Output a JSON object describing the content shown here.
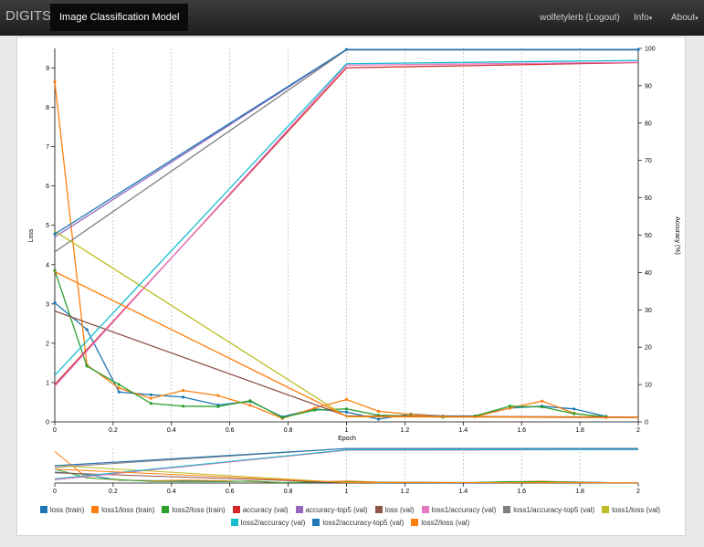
{
  "nav": {
    "brand": "DIGITS",
    "crumb": "Image Classification Model",
    "user": "wolfetylerb (Logout)",
    "info": "Info",
    "about": "About",
    "caret": "▾"
  },
  "chart_data": {
    "type": "line",
    "xlabel": "Epoch",
    "ylabel": "Loss",
    "y2label": "Accuracy (%)",
    "xlim": [
      0,
      2
    ],
    "ylim": [
      0,
      9.5
    ],
    "y2lim": [
      0,
      100
    ],
    "xticks": [
      "0",
      "0.2",
      "0.4",
      "0.6",
      "0.8",
      "1",
      "1.2",
      "1.4",
      "1.6",
      "1.8",
      "2"
    ],
    "yticks": [
      "0",
      "1",
      "2",
      "3",
      "4",
      "5",
      "6",
      "7",
      "8",
      "9"
    ],
    "y2ticks": [
      "0",
      "10",
      "20",
      "30",
      "40",
      "50",
      "60",
      "70",
      "80",
      "90",
      "100"
    ],
    "grid_x": true,
    "series": [
      {
        "name": "loss (train)",
        "axis": "left",
        "color": "#1f77b4",
        "markers": true,
        "x": [
          0,
          0.11,
          0.22,
          0.33,
          0.44,
          0.56,
          0.67,
          0.78,
          0.89,
          1.0,
          1.11,
          1.22,
          1.33,
          1.44,
          1.56,
          1.67,
          1.78,
          1.89
        ],
        "y": [
          3.03,
          2.35,
          0.76,
          0.69,
          0.63,
          0.43,
          0.52,
          0.13,
          0.33,
          0.25,
          0.07,
          0.2,
          0.15,
          0.15,
          0.35,
          0.4,
          0.33,
          0.14
        ]
      },
      {
        "name": "loss1/loss (train)",
        "axis": "left",
        "color": "#ff7f0e",
        "markers": true,
        "x": [
          0,
          0.11,
          0.22,
          0.33,
          0.44,
          0.56,
          0.67,
          0.78,
          0.89,
          1.0,
          1.11,
          1.22,
          1.33,
          1.44,
          1.56,
          1.67,
          1.78,
          1.89
        ],
        "y": [
          8.65,
          1.45,
          0.86,
          0.6,
          0.8,
          0.67,
          0.42,
          0.09,
          0.35,
          0.57,
          0.27,
          0.19,
          0.14,
          0.13,
          0.35,
          0.53,
          0.22,
          0.11
        ]
      },
      {
        "name": "loss2/loss (train)",
        "axis": "left",
        "color": "#2ca02c",
        "markers": true,
        "x": [
          0,
          0.11,
          0.22,
          0.33,
          0.44,
          0.56,
          0.67,
          0.78,
          0.89,
          1.0,
          1.11,
          1.22,
          1.33,
          1.44,
          1.56,
          1.67,
          1.78,
          1.89
        ],
        "y": [
          3.85,
          1.42,
          0.95,
          0.47,
          0.4,
          0.39,
          0.54,
          0.11,
          0.3,
          0.33,
          0.17,
          0.15,
          0.12,
          0.15,
          0.4,
          0.38,
          0.21,
          0.13
        ]
      },
      {
        "name": "accuracy (val)",
        "axis": "right",
        "color": "#d62728",
        "markers": false,
        "x": [
          0,
          1,
          2
        ],
        "y": [
          10,
          94.8,
          96.2
        ]
      },
      {
        "name": "accuracy-top5 (val)",
        "axis": "right",
        "color": "#9467bd",
        "markers": false,
        "x": [
          0,
          1,
          2
        ],
        "y": [
          49.5,
          99.6,
          99.6
        ]
      },
      {
        "name": "loss (val)",
        "axis": "left",
        "color": "#8c564b",
        "markers": false,
        "x": [
          0,
          1,
          2
        ],
        "y": [
          2.82,
          0.15,
          0.12
        ]
      },
      {
        "name": "loss1/accuracy (val)",
        "axis": "right",
        "color": "#e377c2",
        "markers": false,
        "x": [
          0,
          1,
          2
        ],
        "y": [
          9.5,
          95.5,
          96.3
        ]
      },
      {
        "name": "loss1/accuracy-top5 (val)",
        "axis": "right",
        "color": "#7f7f7f",
        "markers": false,
        "x": [
          0,
          1,
          2
        ],
        "y": [
          45.5,
          99.6,
          99.6
        ]
      },
      {
        "name": "loss1/loss (val)",
        "axis": "left",
        "color": "#bcbd22",
        "markers": false,
        "x": [
          0,
          1,
          2
        ],
        "y": [
          4.85,
          0.13,
          0.11
        ]
      },
      {
        "name": "loss2/accuracy (val)",
        "axis": "right",
        "color": "#17becf",
        "markers": false,
        "x": [
          0,
          1,
          2
        ],
        "y": [
          12.5,
          95.9,
          96.8
        ]
      },
      {
        "name": "loss2/accuracy-top5 (val)",
        "axis": "right",
        "color": "#1f77b4",
        "markers": true,
        "x": [
          0,
          1,
          2
        ],
        "y": [
          50.3,
          99.7,
          99.7
        ]
      },
      {
        "name": "loss2/loss (val)",
        "axis": "left",
        "color": "#ff7f0e",
        "markers": false,
        "x": [
          0,
          1,
          2
        ],
        "y": [
          3.82,
          0.14,
          0.11
        ]
      }
    ]
  }
}
